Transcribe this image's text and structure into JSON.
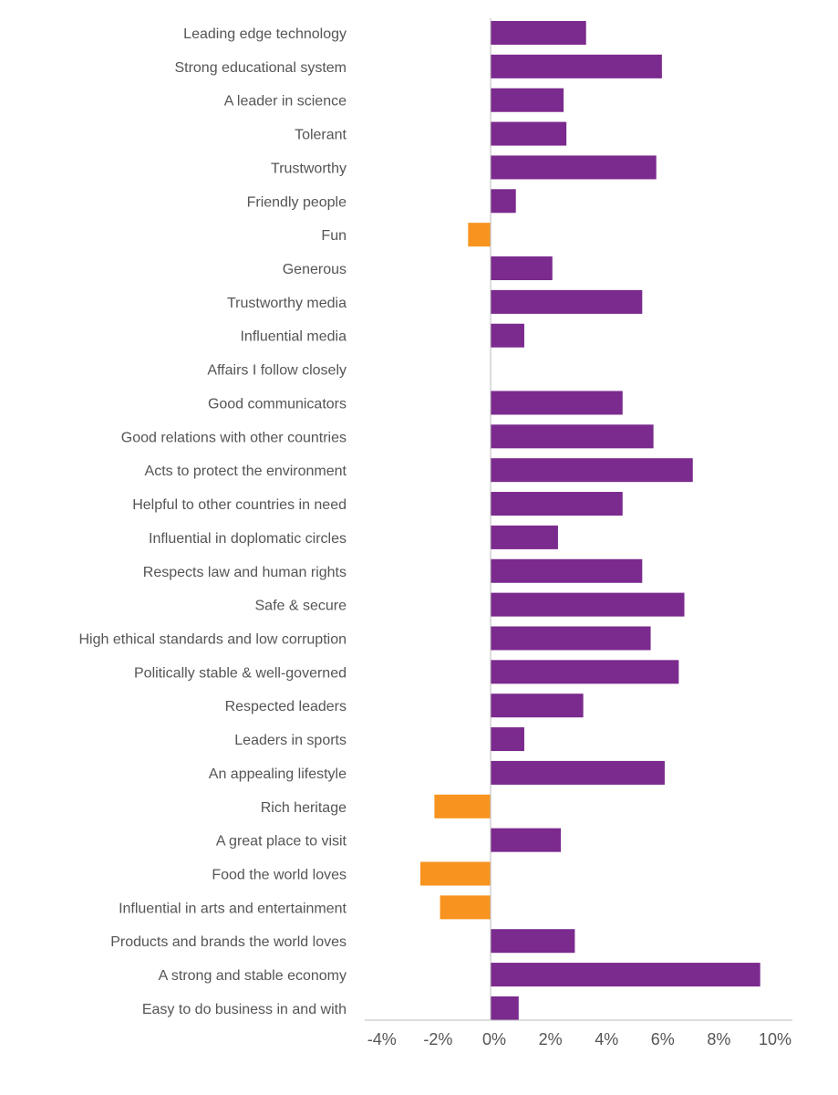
{
  "chart_data": {
    "type": "bar",
    "orientation": "horizontal",
    "title": "",
    "xlabel": "",
    "ylabel": "",
    "xlim": [
      -4,
      10
    ],
    "xticks": [
      -4,
      -2,
      0,
      2,
      4,
      6,
      8,
      10
    ],
    "xtick_labels": [
      "-4%",
      "-2%",
      "0%",
      "2%",
      "4%",
      "6%",
      "8%",
      "10%"
    ],
    "grid": false,
    "legend": "none",
    "colors": {
      "positive": "#7B2A8E",
      "negative": "#F7931E",
      "axis": "#BBBBBB",
      "text": "#555555"
    },
    "categories": [
      "Leading edge technology",
      "Strong educational system",
      "A leader in science",
      "Tolerant",
      "Trustworthy",
      "Friendly people",
      "Fun",
      "Generous",
      "Trustworthy media",
      "Influential media",
      "Affairs I follow closely",
      "Good communicators",
      "Good relations with other countries",
      "Acts to protect the environment",
      "Helpful to other countries in need",
      "Influential in doplomatic circles",
      "Respects law and human rights",
      "Safe & secure",
      "High ethical standards and low corruption",
      "Politically stable & well-governed",
      "Respected leaders",
      "Leaders in sports",
      "An appealing lifestyle",
      "Rich heritage",
      "A great place to visit",
      "Food the world loves",
      "Influential in arts and entertainment",
      "Products and brands the world loves",
      "A strong and stable economy",
      "Easy to do business in and with"
    ],
    "values": [
      3.4,
      6.1,
      2.6,
      2.7,
      5.9,
      0.9,
      -0.8,
      2.2,
      5.4,
      1.2,
      0.0,
      4.7,
      5.8,
      7.2,
      4.7,
      2.4,
      5.4,
      6.9,
      5.7,
      6.7,
      3.3,
      1.2,
      6.2,
      -2.0,
      2.5,
      -2.5,
      -1.8,
      3.0,
      9.6,
      1.0
    ]
  }
}
